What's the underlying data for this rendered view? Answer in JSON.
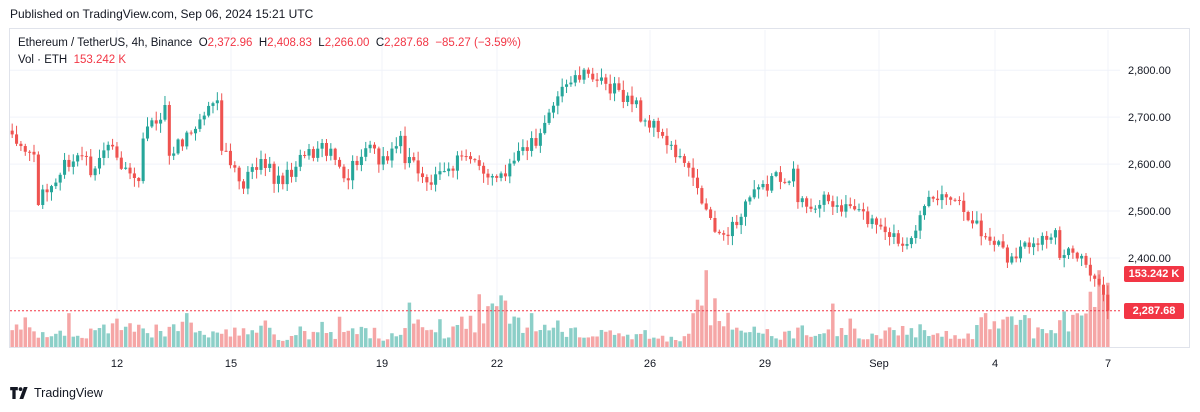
{
  "published": "Published on TradingView.com, Sep 06, 2024 15:21 UTC",
  "legend": {
    "symbol": "Ethereum / TetherUS, 4h, Binance",
    "o_label": "O",
    "o_value": "2,372.96",
    "h_label": "H",
    "h_value": "2,408.83",
    "l_label": "L",
    "l_value": "2,266.00",
    "c_label": "C",
    "c_value": "2,287.68",
    "change": "−85.27 (−3.59%)",
    "vol_label": "Vol · ETH",
    "vol_value": "153.242 K"
  },
  "tags": {
    "volume": "153.242 K",
    "price": "2,287.68"
  },
  "footer": {
    "brand": "TradingView",
    "logo_icon": "tradingview-logo-icon"
  },
  "colors": {
    "up": "#26a69a",
    "down": "#ef5350",
    "vol_up": "#8ccfc8",
    "vol_down": "#f5a6a6",
    "price_tag": "#f23645"
  },
  "chart_data": {
    "type": "candlestick",
    "interval": "4h",
    "y_axis": {
      "ticks": [
        2400,
        2500,
        2600,
        2700,
        2800
      ],
      "tick_labels": [
        "2,400.00",
        "2,500.00",
        "2,600.00",
        "2,700.00",
        "2,800.00"
      ],
      "position": "right"
    },
    "x_axis": {
      "tick_labels": [
        "12",
        "15",
        "19",
        "22",
        "26",
        "29",
        "Sep",
        "4",
        "7"
      ]
    },
    "last_close": 2287.68,
    "last_volume_k": 153.242,
    "waypoints": [
      [
        2650,
        2610
      ],
      [
        2520,
        2590
      ],
      [
        2600,
        2630
      ],
      [
        2590,
        2660
      ],
      [
        2600,
        2540
      ],
      [
        2660,
        2730
      ],
      [
        2620,
        2680
      ],
      [
        2680,
        2760
      ],
      [
        2640,
        2520
      ],
      [
        2580,
        2620
      ],
      [
        2560,
        2590
      ],
      [
        2610,
        2640
      ],
      [
        2630,
        2560
      ],
      [
        2600,
        2640
      ],
      [
        2590,
        2670
      ],
      [
        2610,
        2560
      ],
      [
        2560,
        2600
      ],
      [
        2630,
        2580
      ],
      [
        2580,
        2580
      ],
      [
        2610,
        2650
      ],
      [
        2630,
        2780
      ],
      [
        2770,
        2790
      ],
      [
        2800,
        2740
      ],
      [
        2760,
        2720
      ],
      [
        2700,
        2660
      ],
      [
        2640,
        2580
      ],
      [
        2560,
        2440
      ],
      [
        2440,
        2500
      ],
      [
        2520,
        2560
      ],
      [
        2570,
        2580
      ],
      [
        2520,
        2510
      ],
      [
        2520,
        2500
      ],
      [
        2510,
        2470
      ],
      [
        2480,
        2430
      ],
      [
        2430,
        2510
      ],
      [
        2520,
        2540
      ],
      [
        2530,
        2460
      ],
      [
        2450,
        2420
      ],
      [
        2400,
        2440
      ],
      [
        2440,
        2450
      ],
      [
        2400,
        2420
      ],
      [
        2380,
        2287.68
      ]
    ],
    "volume_levels": [
      0.45,
      0.3,
      0.25,
      0.35,
      0.5,
      0.35,
      0.5,
      0.25,
      0.3,
      0.4,
      0.2,
      0.25,
      0.25,
      0.3,
      0.2,
      0.35,
      0.3,
      0.5,
      0.75,
      0.5,
      0.4,
      0.3,
      0.25,
      0.2,
      0.3,
      0.2,
      0.75,
      0.5,
      0.3,
      0.25,
      0.35,
      0.3,
      0.2,
      0.3,
      0.35,
      0.3,
      0.2,
      0.45,
      0.6,
      0.3,
      0.5,
      1.0
    ]
  }
}
